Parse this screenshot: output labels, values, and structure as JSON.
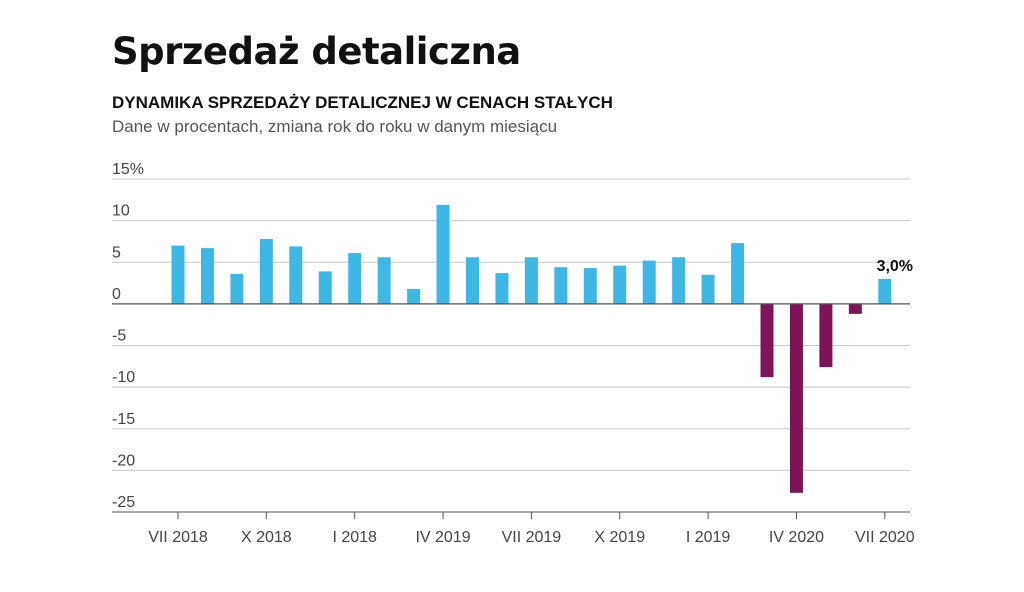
{
  "header": {
    "title": "Sprzedaż detaliczna",
    "subtitle": "DYNAMIKA SPRZEDAŻY DETALICZNEJ W CENACH STAŁYCH",
    "description": "Dane w procentach, zmiana rok do roku w danym miesiącu"
  },
  "colors": {
    "positive": "#3db7e4",
    "negative": "#7d1457",
    "grid": "#c8c8c8",
    "zero_line": "#555555"
  },
  "chart_data": {
    "type": "bar",
    "title": "",
    "xlabel": "",
    "ylabel": "",
    "ylim": [
      -25,
      15
    ],
    "y_ticks": [
      15,
      10,
      5,
      0,
      -5,
      -10,
      -15,
      -20,
      -25
    ],
    "y_tick_labels": [
      "15%",
      "10",
      "5",
      "0",
      "-5",
      "-10",
      "-15",
      "-20",
      "-25"
    ],
    "x_tick_labels": [
      "VII 2018",
      "X 2018",
      "I 2018",
      "IV 2019",
      "VII 2019",
      "X 2019",
      "I 2019",
      "IV 2020",
      "VII 2020"
    ],
    "x_tick_every": 3,
    "grid": true,
    "values": [
      7.0,
      6.7,
      3.6,
      7.8,
      6.9,
      3.9,
      6.1,
      5.6,
      1.8,
      11.9,
      5.6,
      3.7,
      5.6,
      4.4,
      4.3,
      4.6,
      5.2,
      5.6,
      3.5,
      7.3,
      -8.8,
      -22.7,
      -7.6,
      -1.2,
      3.0
    ],
    "annotations": [
      {
        "index": 24,
        "text": "3,0%"
      }
    ]
  }
}
